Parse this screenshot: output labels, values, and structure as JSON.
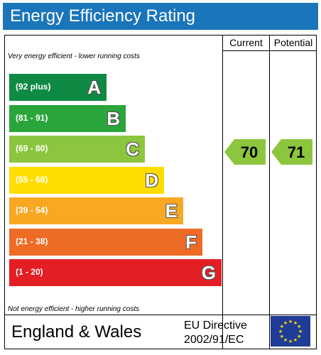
{
  "title": "Energy Efficiency Rating",
  "columns": {
    "current": "Current",
    "potential": "Potential"
  },
  "notes": {
    "top": "Very energy efficient - lower running costs",
    "bottom": "Not energy efficient - higher running costs"
  },
  "footer": {
    "country": "England & Wales",
    "directive_line1": "EU Directive",
    "directive_line2": "2002/91/EC",
    "flag": "eu-flag-icon"
  },
  "chart_data": {
    "type": "bar",
    "title": "Energy Efficiency Rating",
    "categories": [
      "A",
      "B",
      "C",
      "D",
      "E",
      "F",
      "G"
    ],
    "bands": [
      {
        "letter": "A",
        "range": "(92 plus)",
        "color": "#0f8a44"
      },
      {
        "letter": "B",
        "range": "(81 - 91)",
        "color": "#2aa53b"
      },
      {
        "letter": "C",
        "range": "(69 - 80)",
        "color": "#8cc63f"
      },
      {
        "letter": "D",
        "range": "(55 - 68)",
        "color": "#ffdd00"
      },
      {
        "letter": "E",
        "range": "(39 - 54)",
        "color": "#f8a822"
      },
      {
        "letter": "F",
        "range": "(21 - 38)",
        "color": "#ee6b25"
      },
      {
        "letter": "G",
        "range": "(1 - 20)",
        "color": "#e31e24"
      }
    ],
    "series": [
      {
        "name": "Current",
        "value": 70,
        "band": "C",
        "color": "#8cc63f"
      },
      {
        "name": "Potential",
        "value": 71,
        "band": "C",
        "color": "#8cc63f"
      }
    ]
  }
}
